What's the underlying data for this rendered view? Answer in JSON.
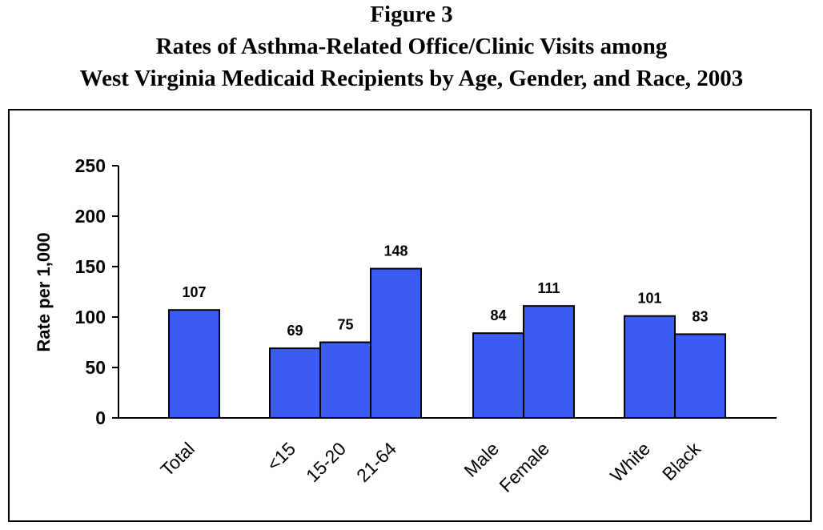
{
  "figure_label": "Figure 3",
  "title_line1": "Rates of Asthma-Related Office/Clinic Visits among",
  "title_line2": "West Virginia Medicaid Recipients by Age, Gender, and Race, 2003",
  "chart_data": {
    "type": "bar",
    "title": "Rates of Asthma-Related Office/Clinic Visits among West Virginia Medicaid Recipients by Age, Gender, and Race, 2003",
    "xlabel": "",
    "ylabel": "Rate per 1,000",
    "ylim": [
      0,
      250
    ],
    "yticks": [
      0,
      50,
      100,
      150,
      200,
      250
    ],
    "grid": false,
    "legend": "none",
    "categories": [
      "Total",
      "<15",
      "15-20",
      "21-64",
      "Male",
      "Female",
      "White",
      "Black"
    ],
    "values": [
      107,
      69,
      75,
      148,
      84,
      111,
      101,
      83
    ],
    "data_labels": [
      "107",
      "69",
      "75",
      "148",
      "84",
      "111",
      "101",
      "83"
    ],
    "bar_color": "#3b5cf0",
    "bar_edge_color": "#000000"
  }
}
